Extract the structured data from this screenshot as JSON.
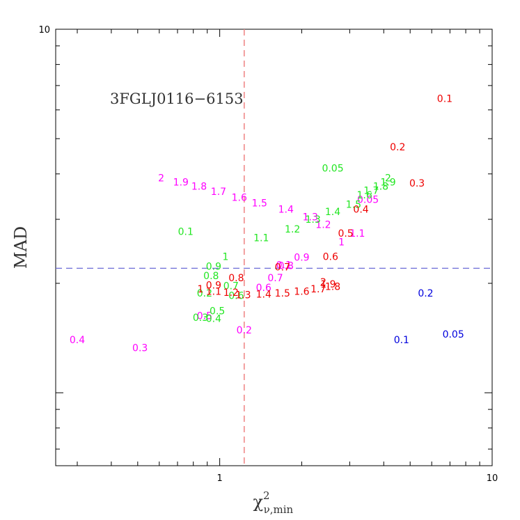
{
  "chart_data": {
    "type": "scatter",
    "title": "",
    "annotation": "3FGLJ0116−6153",
    "xlabel": "χ²_{ν,min}",
    "ylabel": "MAD",
    "x_scale": "log",
    "y_scale": "log",
    "xlim": [
      0.25,
      10
    ],
    "ylim": [
      0.63,
      10
    ],
    "x_ticks": [
      {
        "value": 1,
        "label": "1"
      },
      {
        "value": 10,
        "label": "10"
      }
    ],
    "y_ticks": [
      {
        "value": 10,
        "label": "10"
      }
    ],
    "xlabel_parts": {
      "base": "χ",
      "sup": "2",
      "sub": "ν,min"
    },
    "grid": false,
    "reference_lines": [
      {
        "orientation": "vertical",
        "value": 1.23,
        "color": "#f08a8a",
        "style": "dashed"
      },
      {
        "orientation": "horizontal",
        "value": 2.2,
        "color": "#6b6bd6",
        "style": "dashed"
      }
    ],
    "series": [
      {
        "color": "#ff00ff",
        "points": [
          {
            "x": 0.3,
            "y": 1.4,
            "label": "0.4"
          },
          {
            "x": 0.51,
            "y": 1.33,
            "label": "0.3"
          },
          {
            "x": 0.61,
            "y": 3.9,
            "label": "2"
          },
          {
            "x": 0.72,
            "y": 3.8,
            "label": "1.9"
          },
          {
            "x": 0.84,
            "y": 3.7,
            "label": "1.8"
          },
          {
            "x": 0.99,
            "y": 3.58,
            "label": "1.7"
          },
          {
            "x": 1.18,
            "y": 3.45,
            "label": "1.6"
          },
          {
            "x": 1.4,
            "y": 3.33,
            "label": "1.5"
          },
          {
            "x": 1.75,
            "y": 3.2,
            "label": "1.4"
          },
          {
            "x": 2.15,
            "y": 3.05,
            "label": "1.3"
          },
          {
            "x": 2.4,
            "y": 2.9,
            "label": "1.2"
          },
          {
            "x": 3.2,
            "y": 2.75,
            "label": "1.1"
          },
          {
            "x": 2.8,
            "y": 2.6,
            "label": "1"
          },
          {
            "x": 2.0,
            "y": 2.36,
            "label": "0.9"
          },
          {
            "x": 1.75,
            "y": 2.24,
            "label": "0.8"
          },
          {
            "x": 1.6,
            "y": 2.07,
            "label": "0.7"
          },
          {
            "x": 1.45,
            "y": 1.95,
            "label": "0.6"
          },
          {
            "x": 0.88,
            "y": 1.63,
            "label": "0.5"
          },
          {
            "x": 1.23,
            "y": 1.49,
            "label": "0.2"
          },
          {
            "x": 1.72,
            "y": 2.25,
            "label": "0.1"
          },
          {
            "x": 3.5,
            "y": 3.4,
            "label": "0.05"
          }
        ]
      },
      {
        "color": "#22e622",
        "points": [
          {
            "x": 2.6,
            "y": 4.15,
            "label": "0.05"
          },
          {
            "x": 0.75,
            "y": 2.78,
            "label": "0.1"
          },
          {
            "x": 0.88,
            "y": 1.88,
            "label": "0.2"
          },
          {
            "x": 0.85,
            "y": 1.61,
            "label": "0.3"
          },
          {
            "x": 0.95,
            "y": 1.6,
            "label": "0.4"
          },
          {
            "x": 0.98,
            "y": 1.68,
            "label": "0.5"
          },
          {
            "x": 1.15,
            "y": 1.85,
            "label": "0.6"
          },
          {
            "x": 1.1,
            "y": 1.97,
            "label": "0.7"
          },
          {
            "x": 0.93,
            "y": 2.1,
            "label": "0.8"
          },
          {
            "x": 0.95,
            "y": 2.23,
            "label": "0.9"
          },
          {
            "x": 1.05,
            "y": 2.37,
            "label": "1"
          },
          {
            "x": 1.42,
            "y": 2.67,
            "label": "1.1"
          },
          {
            "x": 1.85,
            "y": 2.82,
            "label": "1.2"
          },
          {
            "x": 2.2,
            "y": 3.0,
            "label": "1.3"
          },
          {
            "x": 2.6,
            "y": 3.15,
            "label": "1.4"
          },
          {
            "x": 3.1,
            "y": 3.3,
            "label": "1.5"
          },
          {
            "x": 3.4,
            "y": 3.5,
            "label": "1.6"
          },
          {
            "x": 3.6,
            "y": 3.6,
            "label": "1.7"
          },
          {
            "x": 3.9,
            "y": 3.7,
            "label": "1.8"
          },
          {
            "x": 4.15,
            "y": 3.8,
            "label": "1.9"
          },
          {
            "x": 4.15,
            "y": 3.9,
            "label": "2"
          }
        ]
      },
      {
        "color": "#ee0000",
        "points": [
          {
            "x": 6.7,
            "y": 6.45,
            "label": "0.1"
          },
          {
            "x": 4.5,
            "y": 4.75,
            "label": "0.2"
          },
          {
            "x": 5.3,
            "y": 3.77,
            "label": "0.3"
          },
          {
            "x": 3.3,
            "y": 3.2,
            "label": "0.4"
          },
          {
            "x": 2.9,
            "y": 2.75,
            "label": "0.5"
          },
          {
            "x": 2.55,
            "y": 2.37,
            "label": "0.6"
          },
          {
            "x": 1.7,
            "y": 2.22,
            "label": "0.7"
          },
          {
            "x": 1.15,
            "y": 2.07,
            "label": "0.8"
          },
          {
            "x": 0.95,
            "y": 1.98,
            "label": "0.9"
          },
          {
            "x": 0.85,
            "y": 1.93,
            "label": "1"
          },
          {
            "x": 0.95,
            "y": 1.9,
            "label": "1.1"
          },
          {
            "x": 1.1,
            "y": 1.89,
            "label": "1.2"
          },
          {
            "x": 1.22,
            "y": 1.86,
            "label": "1.3"
          },
          {
            "x": 1.45,
            "y": 1.87,
            "label": "1.4"
          },
          {
            "x": 1.7,
            "y": 1.88,
            "label": "1.5"
          },
          {
            "x": 2.0,
            "y": 1.9,
            "label": "1.6"
          },
          {
            "x": 2.3,
            "y": 1.93,
            "label": "1.7"
          },
          {
            "x": 2.6,
            "y": 1.96,
            "label": "1.8"
          },
          {
            "x": 2.5,
            "y": 1.99,
            "label": "1.9"
          },
          {
            "x": 2.4,
            "y": 2.02,
            "label": "2"
          }
        ]
      },
      {
        "color": "#0000dd",
        "points": [
          {
            "x": 7.2,
            "y": 1.45,
            "label": "0.05"
          },
          {
            "x": 4.65,
            "y": 1.4,
            "label": "0.1"
          },
          {
            "x": 5.7,
            "y": 1.88,
            "label": "0.2"
          }
        ]
      }
    ]
  }
}
